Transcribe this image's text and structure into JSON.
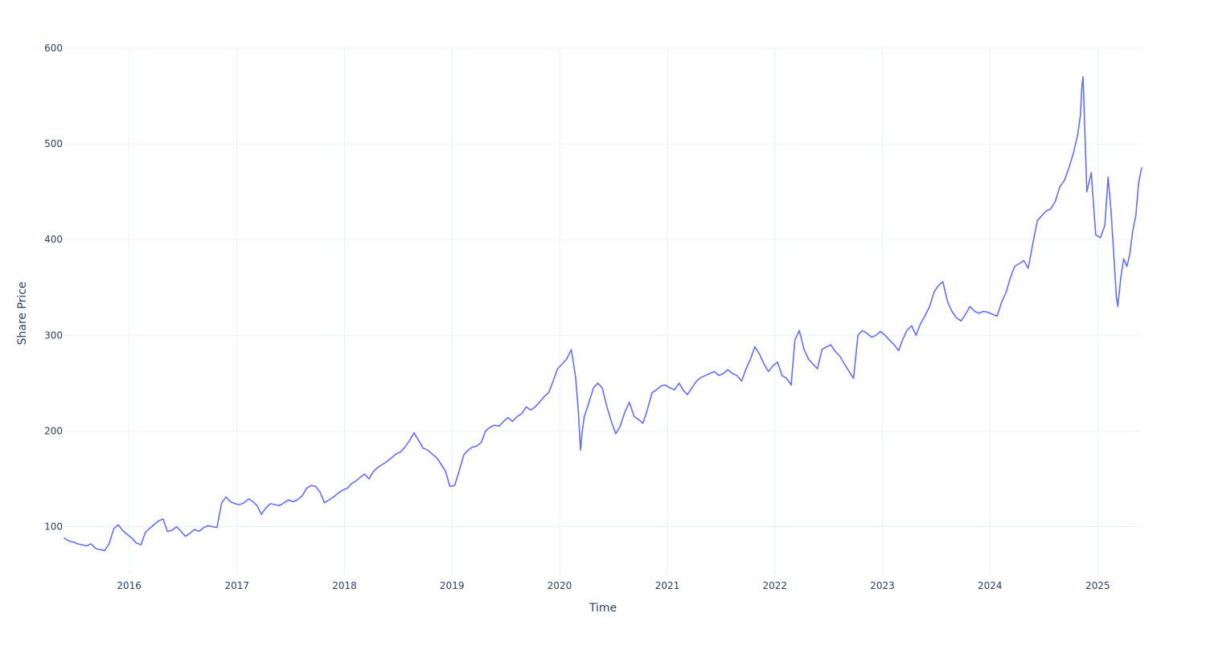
{
  "chart_data": {
    "type": "line",
    "title": "",
    "xlabel": "Time",
    "ylabel": "Share Price",
    "grid": true,
    "legend": "none",
    "xlim": [
      "2015-05-26",
      "2025-05-30"
    ],
    "ylim": [
      50,
      600
    ],
    "x_ticks": [
      {
        "date": "2016-01-01",
        "label": "2016"
      },
      {
        "date": "2017-01-01",
        "label": "2017"
      },
      {
        "date": "2018-01-01",
        "label": "2018"
      },
      {
        "date": "2019-01-01",
        "label": "2019"
      },
      {
        "date": "2020-01-01",
        "label": "2020"
      },
      {
        "date": "2021-01-01",
        "label": "2021"
      },
      {
        "date": "2022-01-01",
        "label": "2022"
      },
      {
        "date": "2023-01-01",
        "label": "2023"
      },
      {
        "date": "2024-01-01",
        "label": "2024"
      },
      {
        "date": "2025-01-01",
        "label": "2025"
      }
    ],
    "y_ticks": [
      100,
      200,
      300,
      400,
      500,
      600
    ],
    "series": [
      {
        "color": "#636efa",
        "x": [
          "2015-05-26",
          "2015-06-10",
          "2015-06-25",
          "2015-07-10",
          "2015-07-25",
          "2015-08-10",
          "2015-08-25",
          "2015-09-10",
          "2015-09-25",
          "2015-10-10",
          "2015-10-25",
          "2015-11-10",
          "2015-11-25",
          "2015-12-10",
          "2015-12-25",
          "2016-01-10",
          "2016-01-25",
          "2016-02-10",
          "2016-02-25",
          "2016-03-10",
          "2016-03-25",
          "2016-04-10",
          "2016-04-25",
          "2016-05-10",
          "2016-05-25",
          "2016-06-10",
          "2016-06-25",
          "2016-07-10",
          "2016-07-25",
          "2016-08-10",
          "2016-08-25",
          "2016-09-10",
          "2016-09-25",
          "2016-10-10",
          "2016-10-25",
          "2016-11-10",
          "2016-11-25",
          "2016-12-10",
          "2016-12-25",
          "2017-01-10",
          "2017-01-25",
          "2017-02-10",
          "2017-02-25",
          "2017-03-10",
          "2017-03-25",
          "2017-04-10",
          "2017-04-25",
          "2017-05-10",
          "2017-05-25",
          "2017-06-10",
          "2017-06-25",
          "2017-07-10",
          "2017-07-25",
          "2017-08-10",
          "2017-08-25",
          "2017-09-10",
          "2017-09-25",
          "2017-10-10",
          "2017-10-25",
          "2017-11-10",
          "2017-11-25",
          "2017-12-10",
          "2017-12-25",
          "2018-01-10",
          "2018-01-25",
          "2018-02-10",
          "2018-02-25",
          "2018-03-10",
          "2018-03-25",
          "2018-04-10",
          "2018-04-25",
          "2018-05-10",
          "2018-05-25",
          "2018-06-10",
          "2018-06-25",
          "2018-07-10",
          "2018-07-25",
          "2018-08-10",
          "2018-08-25",
          "2018-09-10",
          "2018-09-25",
          "2018-10-10",
          "2018-10-25",
          "2018-11-10",
          "2018-11-25",
          "2018-12-10",
          "2018-12-25",
          "2019-01-10",
          "2019-01-25",
          "2019-02-10",
          "2019-02-25",
          "2019-03-10",
          "2019-03-25",
          "2019-04-10",
          "2019-04-25",
          "2019-05-10",
          "2019-05-25",
          "2019-06-10",
          "2019-06-25",
          "2019-07-10",
          "2019-07-25",
          "2019-08-10",
          "2019-08-25",
          "2019-09-10",
          "2019-09-25",
          "2019-10-10",
          "2019-10-25",
          "2019-11-10",
          "2019-11-25",
          "2019-12-10",
          "2019-12-25",
          "2020-01-10",
          "2020-01-25",
          "2020-02-10",
          "2020-02-25",
          "2020-03-05",
          "2020-03-12",
          "2020-03-18",
          "2020-03-25",
          "2020-04-10",
          "2020-04-25",
          "2020-05-10",
          "2020-05-25",
          "2020-06-10",
          "2020-06-25",
          "2020-07-10",
          "2020-07-25",
          "2020-08-10",
          "2020-08-25",
          "2020-09-10",
          "2020-09-25",
          "2020-10-10",
          "2020-10-25",
          "2020-11-10",
          "2020-11-25",
          "2020-12-10",
          "2020-12-25",
          "2021-01-10",
          "2021-01-25",
          "2021-02-10",
          "2021-02-25",
          "2021-03-10",
          "2021-03-25",
          "2021-04-10",
          "2021-04-25",
          "2021-05-10",
          "2021-05-25",
          "2021-06-10",
          "2021-06-25",
          "2021-07-10",
          "2021-07-25",
          "2021-08-10",
          "2021-08-25",
          "2021-09-10",
          "2021-09-25",
          "2021-10-10",
          "2021-10-25",
          "2021-11-10",
          "2021-11-25",
          "2021-12-10",
          "2021-12-25",
          "2022-01-10",
          "2022-01-25",
          "2022-02-10",
          "2022-02-25",
          "2022-03-10",
          "2022-03-25",
          "2022-04-10",
          "2022-04-25",
          "2022-05-10",
          "2022-05-25",
          "2022-06-10",
          "2022-06-25",
          "2022-07-10",
          "2022-07-25",
          "2022-08-10",
          "2022-08-25",
          "2022-09-10",
          "2022-09-25",
          "2022-10-10",
          "2022-10-25",
          "2022-11-10",
          "2022-11-25",
          "2022-12-10",
          "2022-12-25",
          "2023-01-10",
          "2023-01-25",
          "2023-02-10",
          "2023-02-25",
          "2023-03-10",
          "2023-03-25",
          "2023-04-10",
          "2023-04-25",
          "2023-05-10",
          "2023-05-25",
          "2023-06-10",
          "2023-06-25",
          "2023-07-10",
          "2023-07-25",
          "2023-08-10",
          "2023-08-25",
          "2023-09-10",
          "2023-09-25",
          "2023-10-10",
          "2023-10-25",
          "2023-11-10",
          "2023-11-25",
          "2023-12-10",
          "2023-12-25",
          "2024-01-10",
          "2024-01-25",
          "2024-02-10",
          "2024-02-25",
          "2024-03-10",
          "2024-03-25",
          "2024-04-10",
          "2024-04-25",
          "2024-05-10",
          "2024-05-25",
          "2024-06-10",
          "2024-06-25",
          "2024-07-10",
          "2024-07-25",
          "2024-08-10",
          "2024-08-25",
          "2024-09-10",
          "2024-09-25",
          "2024-10-10",
          "2024-10-25",
          "2024-11-03",
          "2024-11-08",
          "2024-11-12",
          "2024-11-25",
          "2024-12-10",
          "2024-12-25",
          "2025-01-10",
          "2025-01-25",
          "2025-02-05",
          "2025-02-15",
          "2025-02-25",
          "2025-03-05",
          "2025-03-10",
          "2025-03-20",
          "2025-03-30",
          "2025-04-10",
          "2025-04-20",
          "2025-04-30",
          "2025-05-10",
          "2025-05-20",
          "2025-05-30"
        ],
        "y": [
          88,
          85,
          84,
          82,
          81,
          80,
          82,
          77,
          76,
          75,
          82,
          98,
          102,
          96,
          92,
          88,
          83,
          81,
          94,
          98,
          102,
          106,
          108,
          95,
          96,
          100,
          95,
          90,
          93,
          97,
          95,
          99,
          101,
          100,
          99,
          125,
          131,
          126,
          124,
          123,
          125,
          129,
          126,
          122,
          113,
          120,
          124,
          123,
          122,
          125,
          128,
          126,
          128,
          132,
          140,
          143,
          142,
          136,
          125,
          128,
          131,
          135,
          138,
          140,
          145,
          148,
          152,
          155,
          150,
          158,
          162,
          165,
          168,
          172,
          176,
          178,
          183,
          190,
          198,
          190,
          182,
          180,
          176,
          172,
          165,
          158,
          142,
          143,
          158,
          175,
          180,
          183,
          184,
          188,
          200,
          204,
          206,
          205,
          210,
          214,
          210,
          215,
          218,
          225,
          222,
          225,
          230,
          236,
          240,
          252,
          265,
          270,
          275,
          285,
          255,
          220,
          180,
          200,
          215,
          230,
          245,
          250,
          245,
          225,
          210,
          197,
          205,
          220,
          230,
          215,
          212,
          208,
          222,
          240,
          243,
          247,
          248,
          245,
          243,
          250,
          242,
          238,
          245,
          252,
          256,
          258,
          260,
          262,
          258,
          260,
          264,
          260,
          258,
          252,
          265,
          275,
          288,
          280,
          270,
          262,
          268,
          272,
          258,
          255,
          248,
          295,
          305,
          285,
          275,
          270,
          265,
          285,
          288,
          290,
          283,
          278,
          270,
          262,
          255,
          300,
          305,
          302,
          298,
          300,
          304,
          300,
          295,
          290,
          284,
          295,
          305,
          310,
          300,
          312,
          320,
          330,
          345,
          352,
          356,
          335,
          325,
          318,
          315,
          322,
          330,
          325,
          323,
          325,
          324,
          322,
          320,
          335,
          345,
          360,
          372,
          375,
          378,
          370,
          395,
          420,
          425,
          430,
          432,
          440,
          455,
          462,
          475,
          490,
          510,
          530,
          560,
          570,
          450,
          470,
          405,
          402,
          415,
          465,
          430,
          380,
          340,
          330,
          360,
          380,
          372,
          385,
          410,
          425,
          460,
          475
        ]
      }
    ]
  }
}
